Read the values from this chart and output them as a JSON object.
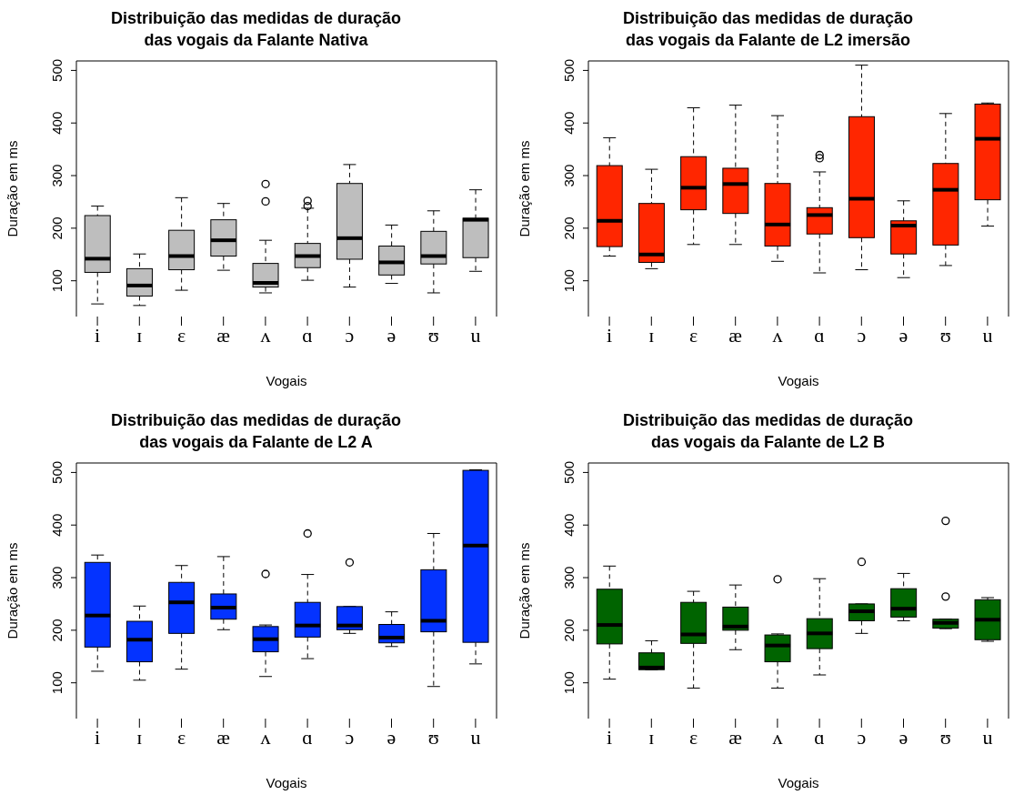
{
  "chart_data": [
    {
      "type": "box",
      "title": "Distribuição das medidas de duração\ndas vogais da Falante Nativa",
      "xlabel": "Vogais",
      "ylabel": "Duração em ms",
      "color": "#bebebe",
      "categories": [
        "i",
        "ɪ",
        "ɛ",
        "æ",
        "ʌ",
        "ɑ",
        "ɔ",
        "ə",
        "ʊ",
        "u"
      ],
      "ylim": [
        32,
        518
      ],
      "yticks": [
        100,
        200,
        300,
        400,
        500
      ],
      "boxes": [
        {
          "low": 56,
          "q1": 116,
          "median": 142,
          "q3": 224,
          "high": 242
        },
        {
          "low": 53,
          "q1": 71,
          "median": 91,
          "q3": 123,
          "high": 151
        },
        {
          "low": 82,
          "q1": 121,
          "median": 147,
          "q3": 196,
          "high": 258
        },
        {
          "low": 120,
          "q1": 147,
          "median": 177,
          "q3": 216,
          "high": 247
        },
        {
          "low": 77,
          "q1": 88,
          "median": 96,
          "q3": 133,
          "high": 177,
          "outliers": [
            284,
            251
          ]
        },
        {
          "low": 101,
          "q1": 125,
          "median": 147,
          "q3": 171,
          "high": 238,
          "outliers": [
            252,
            242
          ]
        },
        {
          "low": 88,
          "q1": 141,
          "median": 181,
          "q3": 285,
          "high": 321
        },
        {
          "low": 95,
          "q1": 111,
          "median": 135,
          "q3": 166,
          "high": 206
        },
        {
          "low": 77,
          "q1": 132,
          "median": 147,
          "q3": 194,
          "high": 233
        },
        {
          "low": 118,
          "q1": 144,
          "median": 216,
          "q3": 219,
          "high": 273
        }
      ]
    },
    {
      "type": "box",
      "title": "Distribuição das medidas de duração\ndas vogais da Falante de L2 imersão",
      "xlabel": "Vogais",
      "ylabel": "Duração em ms",
      "color": "#ff2600",
      "categories": [
        "i",
        "ɪ",
        "ɛ",
        "æ",
        "ʌ",
        "ɑ",
        "ɔ",
        "ə",
        "ʊ",
        "u"
      ],
      "ylim": [
        32,
        518
      ],
      "yticks": [
        100,
        200,
        300,
        400,
        500
      ],
      "boxes": [
        {
          "low": 147,
          "q1": 165,
          "median": 214,
          "q3": 319,
          "high": 372
        },
        {
          "low": 123,
          "q1": 135,
          "median": 150,
          "q3": 247,
          "high": 312
        },
        {
          "low": 169,
          "q1": 235,
          "median": 277,
          "q3": 336,
          "high": 429
        },
        {
          "low": 169,
          "q1": 228,
          "median": 284,
          "q3": 314,
          "high": 434
        },
        {
          "low": 137,
          "q1": 166,
          "median": 207,
          "q3": 285,
          "high": 414
        },
        {
          "low": 115,
          "q1": 189,
          "median": 225,
          "q3": 239,
          "high": 307,
          "outliers": [
            339,
            333
          ]
        },
        {
          "low": 121,
          "q1": 182,
          "median": 256,
          "q3": 412,
          "high": 510
        },
        {
          "low": 106,
          "q1": 151,
          "median": 205,
          "q3": 214,
          "high": 252
        },
        {
          "low": 129,
          "q1": 168,
          "median": 273,
          "q3": 323,
          "high": 418
        },
        {
          "low": 204,
          "q1": 254,
          "median": 370,
          "q3": 436,
          "high": 438
        }
      ]
    },
    {
      "type": "box",
      "title": "Distribuição das medidas de duração\ndas vogais da Falante de L2 A",
      "xlabel": "Vogais",
      "ylabel": "Duração em ms",
      "color": "#0433ff",
      "categories": [
        "i",
        "ɪ",
        "ɛ",
        "æ",
        "ʌ",
        "ɑ",
        "ɔ",
        "ə",
        "ʊ",
        "u"
      ],
      "ylim": [
        32,
        518
      ],
      "yticks": [
        100,
        200,
        300,
        400,
        500
      ],
      "boxes": [
        {
          "low": 122,
          "q1": 168,
          "median": 228,
          "q3": 329,
          "high": 343
        },
        {
          "low": 105,
          "q1": 140,
          "median": 182,
          "q3": 217,
          "high": 246
        },
        {
          "low": 126,
          "q1": 194,
          "median": 253,
          "q3": 291,
          "high": 323
        },
        {
          "low": 201,
          "q1": 221,
          "median": 243,
          "q3": 269,
          "high": 340
        },
        {
          "low": 112,
          "q1": 159,
          "median": 183,
          "q3": 207,
          "high": 210,
          "outliers": [
            307
          ]
        },
        {
          "low": 146,
          "q1": 187,
          "median": 209,
          "q3": 253,
          "high": 306,
          "outliers": [
            384
          ]
        },
        {
          "low": 194,
          "q1": 201,
          "median": 209,
          "q3": 245,
          "high": 245,
          "outliers": [
            329
          ]
        },
        {
          "low": 169,
          "q1": 176,
          "median": 186,
          "q3": 211,
          "high": 235
        },
        {
          "low": 93,
          "q1": 197,
          "median": 218,
          "q3": 315,
          "high": 384
        },
        {
          "low": 136,
          "q1": 177,
          "median": 361,
          "q3": 504,
          "high": 505
        }
      ]
    },
    {
      "type": "box",
      "title": "Distribuição das medidas de duração\ndas vogais da Falante de L2 B",
      "xlabel": "Vogais",
      "ylabel": "Duração em ms",
      "color": "#006400",
      "categories": [
        "i",
        "ɪ",
        "ɛ",
        "æ",
        "ʌ",
        "ɑ",
        "ɔ",
        "ə",
        "ʊ",
        "u"
      ],
      "ylim": [
        32,
        518
      ],
      "yticks": [
        100,
        200,
        300,
        400,
        500
      ],
      "boxes": [
        {
          "low": 107,
          "q1": 174,
          "median": 210,
          "q3": 278,
          "high": 322
        },
        {
          "low": 125,
          "q1": 125,
          "median": 129,
          "q3": 157,
          "high": 180
        },
        {
          "low": 90,
          "q1": 175,
          "median": 192,
          "q3": 253,
          "high": 274
        },
        {
          "low": 163,
          "q1": 200,
          "median": 207,
          "q3": 244,
          "high": 286
        },
        {
          "low": 90,
          "q1": 140,
          "median": 171,
          "q3": 191,
          "high": 193,
          "outliers": [
            297
          ]
        },
        {
          "low": 115,
          "q1": 165,
          "median": 194,
          "q3": 222,
          "high": 298
        },
        {
          "low": 194,
          "q1": 218,
          "median": 236,
          "q3": 250,
          "high": 250,
          "outliers": [
            330
          ]
        },
        {
          "low": 218,
          "q1": 225,
          "median": 241,
          "q3": 279,
          "high": 308
        },
        {
          "low": 203,
          "q1": 204,
          "median": 214,
          "q3": 221,
          "high": 221,
          "outliers": [
            408,
            264
          ]
        },
        {
          "low": 179,
          "q1": 182,
          "median": 220,
          "q3": 258,
          "high": 262
        }
      ]
    }
  ]
}
